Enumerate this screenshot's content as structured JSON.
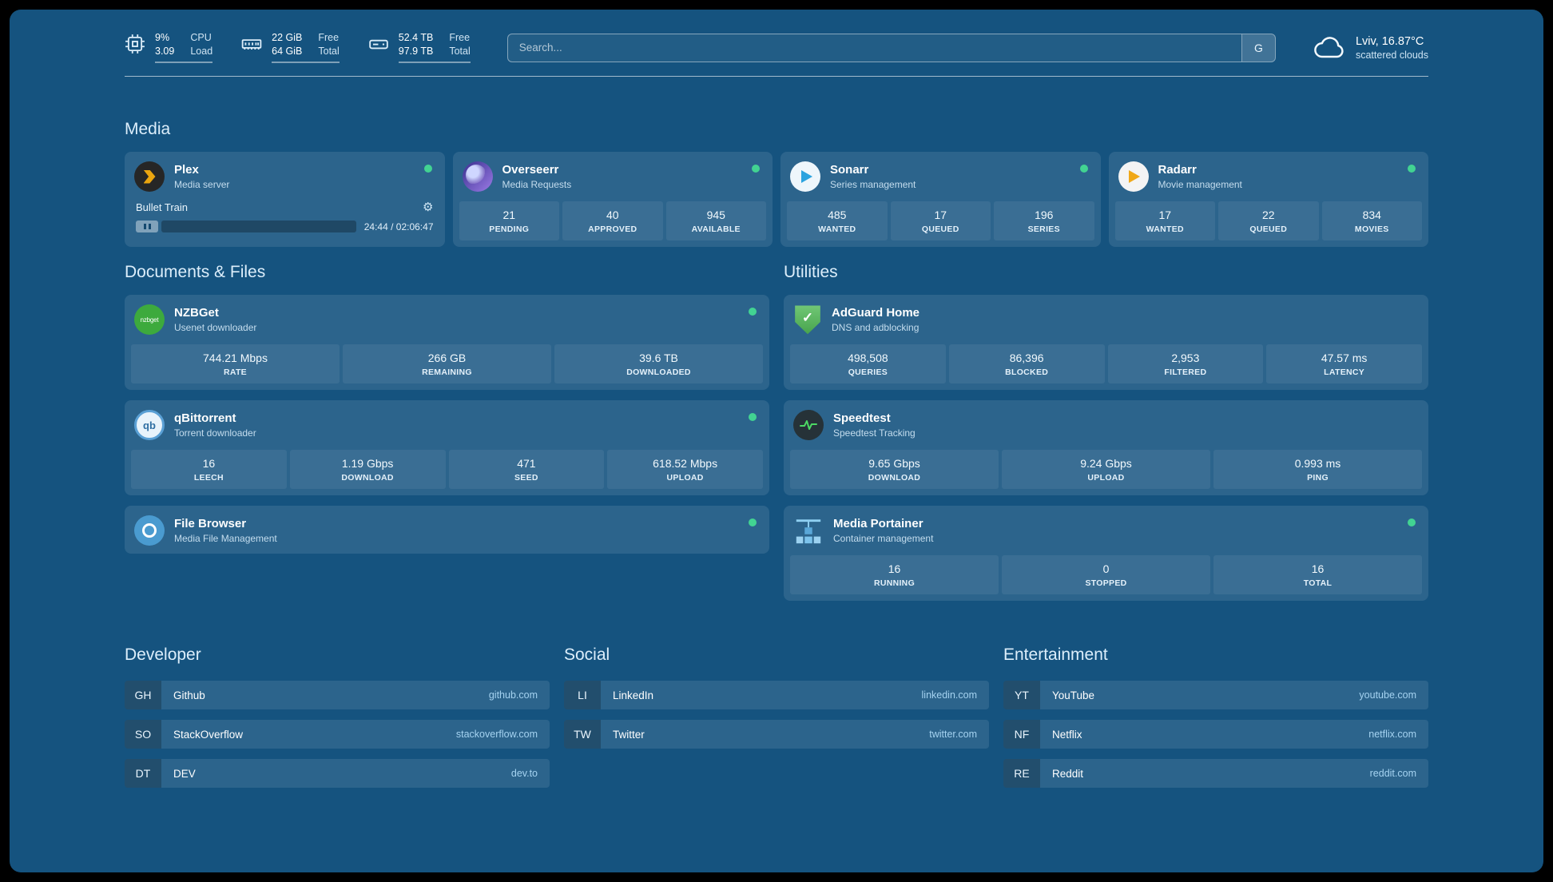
{
  "colors": {
    "background": "#15537f",
    "card": "rgba(255,255,255,0.10)",
    "status_ok": "#42d392",
    "accent_link": "#a5d3f1"
  },
  "topbar": {
    "resources": [
      {
        "icon": "cpu-icon",
        "values": [
          "9%",
          "3.09"
        ],
        "labels": [
          "CPU",
          "Load"
        ]
      },
      {
        "icon": "memory-icon",
        "values": [
          "22 GiB",
          "64 GiB"
        ],
        "labels": [
          "Free",
          "Total"
        ]
      },
      {
        "icon": "disk-icon",
        "values": [
          "52.4 TB",
          "97.9 TB"
        ],
        "labels": [
          "Free",
          "Total"
        ]
      }
    ],
    "search": {
      "placeholder": "Search...",
      "engine": "G"
    },
    "weather": {
      "location": "Lviv, 16.87°C",
      "condition": "scattered clouds"
    }
  },
  "media": {
    "title": "Media",
    "plex": {
      "name": "Plex",
      "subtitle": "Media server",
      "status": "online",
      "now_playing": "Bullet Train",
      "time": "24:44 / 02:06:47",
      "progress_percent": 19
    },
    "overseerr": {
      "name": "Overseerr",
      "subtitle": "Media Requests",
      "status": "online",
      "stats": [
        {
          "value": "21",
          "label": "PENDING"
        },
        {
          "value": "40",
          "label": "APPROVED"
        },
        {
          "value": "945",
          "label": "AVAILABLE"
        }
      ]
    },
    "sonarr": {
      "name": "Sonarr",
      "subtitle": "Series management",
      "status": "online",
      "stats": [
        {
          "value": "485",
          "label": "WANTED"
        },
        {
          "value": "17",
          "label": "QUEUED"
        },
        {
          "value": "196",
          "label": "SERIES"
        }
      ]
    },
    "radarr": {
      "name": "Radarr",
      "subtitle": "Movie management",
      "status": "online",
      "stats": [
        {
          "value": "17",
          "label": "WANTED"
        },
        {
          "value": "22",
          "label": "QUEUED"
        },
        {
          "value": "834",
          "label": "MOVIES"
        }
      ]
    }
  },
  "documents": {
    "title": "Documents & Files",
    "nzbget": {
      "name": "NZBGet",
      "subtitle": "Usenet downloader",
      "status": "online",
      "stats": [
        {
          "value": "744.21 Mbps",
          "label": "RATE"
        },
        {
          "value": "266 GB",
          "label": "REMAINING"
        },
        {
          "value": "39.6 TB",
          "label": "DOWNLOADED"
        }
      ]
    },
    "qbittorrent": {
      "name": "qBittorrent",
      "subtitle": "Torrent downloader",
      "status": "online",
      "stats": [
        {
          "value": "16",
          "label": "LEECH"
        },
        {
          "value": "1.19 Gbps",
          "label": "DOWNLOAD"
        },
        {
          "value": "471",
          "label": "SEED"
        },
        {
          "value": "618.52 Mbps",
          "label": "UPLOAD"
        }
      ]
    },
    "filebrowser": {
      "name": "File Browser",
      "subtitle": "Media File Management",
      "status": "online"
    }
  },
  "utilities": {
    "title": "Utilities",
    "adguard": {
      "name": "AdGuard Home",
      "subtitle": "DNS and adblocking",
      "status": "online",
      "stats": [
        {
          "value": "498,508",
          "label": "QUERIES"
        },
        {
          "value": "86,396",
          "label": "BLOCKED"
        },
        {
          "value": "2,953",
          "label": "FILTERED"
        },
        {
          "value": "47.57 ms",
          "label": "LATENCY"
        }
      ]
    },
    "speedtest": {
      "name": "Speedtest",
      "subtitle": "Speedtest Tracking",
      "status": "online",
      "stats": [
        {
          "value": "9.65 Gbps",
          "label": "DOWNLOAD"
        },
        {
          "value": "9.24 Gbps",
          "label": "UPLOAD"
        },
        {
          "value": "0.993 ms",
          "label": "PING"
        }
      ]
    },
    "portainer": {
      "name": "Media Portainer",
      "subtitle": "Container management",
      "status": "online",
      "stats": [
        {
          "value": "16",
          "label": "RUNNING"
        },
        {
          "value": "0",
          "label": "STOPPED"
        },
        {
          "value": "16",
          "label": "TOTAL"
        }
      ]
    }
  },
  "bookmarks": {
    "developer": {
      "title": "Developer",
      "items": [
        {
          "abbr": "GH",
          "name": "Github",
          "url": "github.com"
        },
        {
          "abbr": "SO",
          "name": "StackOverflow",
          "url": "stackoverflow.com"
        },
        {
          "abbr": "DT",
          "name": "DEV",
          "url": "dev.to"
        }
      ]
    },
    "social": {
      "title": "Social",
      "items": [
        {
          "abbr": "LI",
          "name": "LinkedIn",
          "url": "linkedin.com"
        },
        {
          "abbr": "TW",
          "name": "Twitter",
          "url": "twitter.com"
        }
      ]
    },
    "entertainment": {
      "title": "Entertainment",
      "items": [
        {
          "abbr": "YT",
          "name": "YouTube",
          "url": "youtube.com"
        },
        {
          "abbr": "NF",
          "name": "Netflix",
          "url": "netflix.com"
        },
        {
          "abbr": "RE",
          "name": "Reddit",
          "url": "reddit.com"
        }
      ]
    }
  },
  "icon_names": [
    "cpu-icon",
    "memory-icon",
    "disk-icon",
    "search-icon",
    "cloud-icon",
    "plex-icon",
    "overseerr-icon",
    "sonarr-icon",
    "radarr-icon",
    "nzbget-icon",
    "qbittorrent-icon",
    "adguard-icon",
    "speedtest-icon",
    "filebrowser-icon",
    "portainer-icon",
    "gear-icon",
    "pause-icon",
    "status-dot"
  ]
}
